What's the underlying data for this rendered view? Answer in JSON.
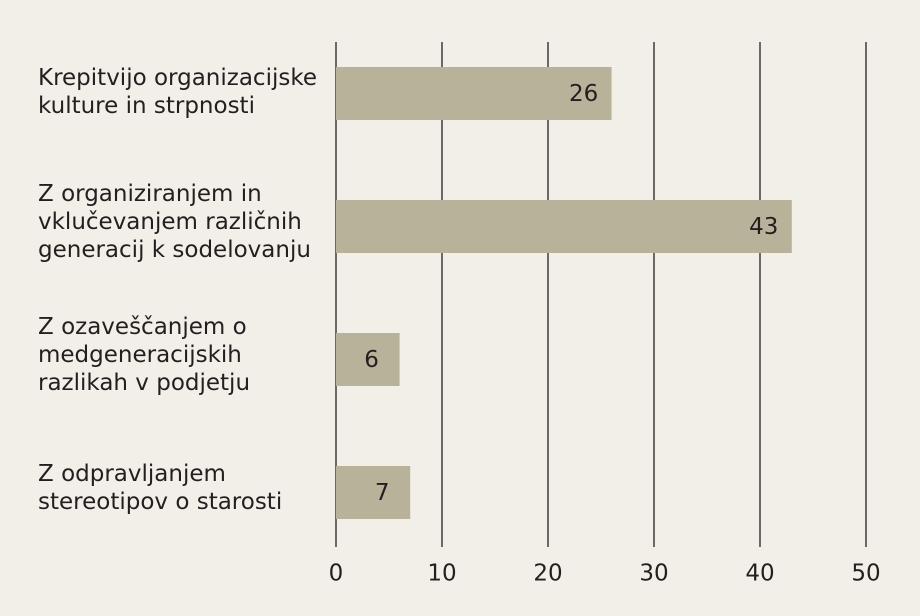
{
  "chart_data": {
    "type": "bar",
    "orientation": "horizontal",
    "categories": [
      [
        "Krepitvijo organizacijske",
        "kulture in strpnosti"
      ],
      [
        "Z organiziranjem in",
        "vklučevanjem različnih",
        "generacij k sodelovanju"
      ],
      [
        "Z ozaveščanjem o",
        "medgeneracijskih",
        "razlikah v podjetju"
      ],
      [
        "Z odpravljanjem",
        "stereotipov o starosti"
      ]
    ],
    "values": [
      26,
      43,
      6,
      7
    ],
    "xlim": [
      0,
      50
    ],
    "xticks": [
      0,
      10,
      20,
      30,
      40,
      50
    ],
    "grid": "vertical",
    "title": "",
    "xlabel": "",
    "ylabel": "",
    "colors": {
      "background": "#f1efe8",
      "bar": "#b9b29b",
      "grid": "#231f20",
      "text": "#231f20"
    }
  }
}
